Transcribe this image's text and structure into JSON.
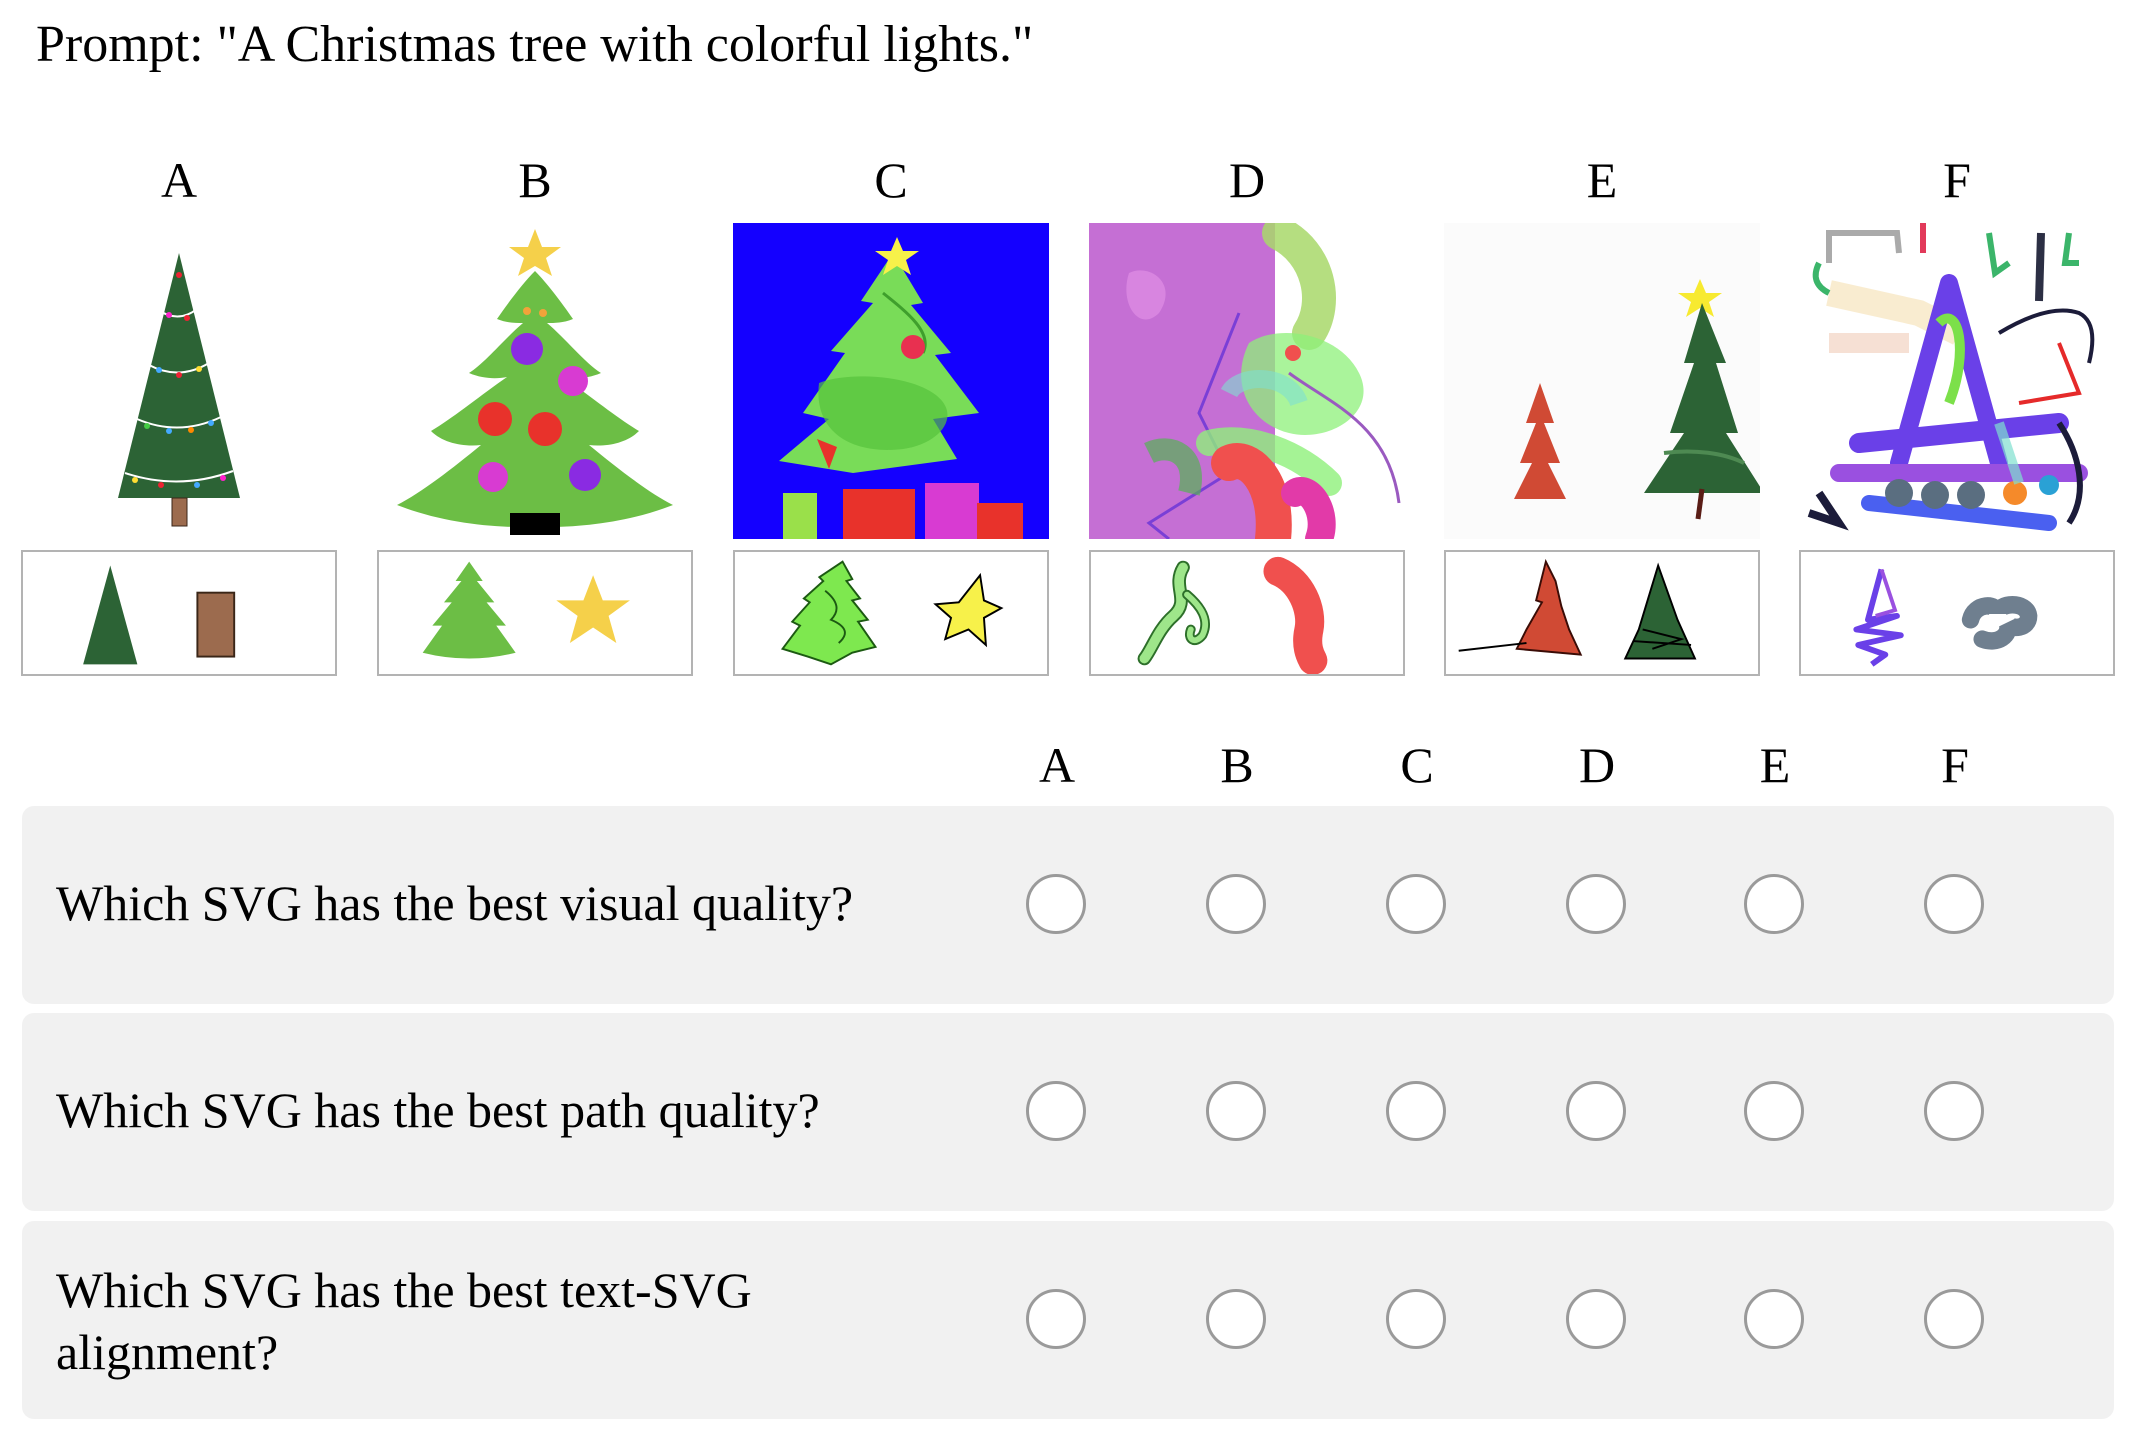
{
  "prompt": "Prompt: \"A Christmas tree with colorful lights.\"",
  "options": [
    "A",
    "B",
    "C",
    "D",
    "E",
    "F"
  ],
  "questions": [
    {
      "text": "Which SVG has the best visual quality?"
    },
    {
      "text": "Which SVG has the best path quality?"
    },
    {
      "text": "Which SVG has the best text-SVG alignment?"
    }
  ],
  "colors": {
    "row_background": "#f1f1f1",
    "radio_border": "#9a9a9a",
    "tree_dark_green": "#2c6335",
    "tree_light_green": "#6cbe45",
    "star_yellow": "#f5d04a",
    "background_blue": "#1400ff",
    "background_purple": "#c56fd4"
  },
  "icons": [
    "christmas-tree-icon",
    "star-icon",
    "tree-trunk-icon",
    "abstract-stroke-icon"
  ]
}
